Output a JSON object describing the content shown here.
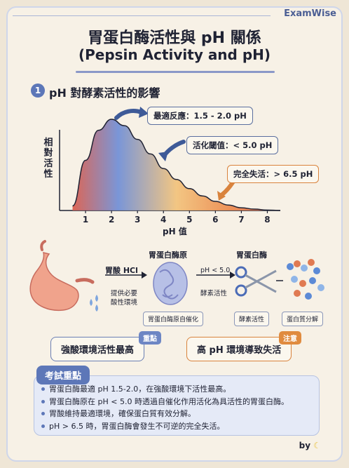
{
  "brand": "ExamWise",
  "title_zh": "胃蛋白酶活性與 pH 關係",
  "title_en": "(Pepsin Activity and pH)",
  "section": {
    "number": "1",
    "title": "pH 對酵素活性的影響"
  },
  "chart_data": {
    "type": "area",
    "ylabel": "相對活性",
    "xlabel": "pH 值",
    "x_ticks": [
      1,
      2,
      3,
      4,
      5,
      6,
      7,
      8
    ],
    "xlim": [
      0,
      8.5
    ],
    "x": [
      0.5,
      1,
      1.5,
      2,
      2.5,
      3,
      3.5,
      4,
      4.5,
      5,
      5.5,
      6,
      6.5,
      7,
      7.5,
      8,
      8.5
    ],
    "y": [
      0.05,
      0.55,
      0.88,
      1.0,
      0.93,
      0.78,
      0.62,
      0.46,
      0.34,
      0.24,
      0.16,
      0.1,
      0.06,
      0.03,
      0.015,
      0.005,
      0.0
    ],
    "annotations": [
      {
        "label": "最適反應：1.5 - 2.0 pH"
      },
      {
        "label": "活化閾值：< 5.0 pH"
      },
      {
        "label": "完全失活：> 6.5 pH"
      }
    ]
  },
  "process": {
    "acid_label": "胃酸 HCl",
    "acid_note": [
      "提供必要",
      "酸性環境"
    ],
    "pepsinogen_label": "胃蛋白酶原",
    "activation_cond": "pH < 5.0",
    "activation_label": "酵素活性",
    "pepsin_label": "胃蛋白酶",
    "chips": [
      "胃蛋白酶原自催化",
      "酵素活性",
      "蛋白質分解"
    ]
  },
  "summary": [
    {
      "text": "強酸環境活性最高",
      "badge": "重點"
    },
    {
      "text": "高 pH 環境導致失活",
      "badge": "注意"
    }
  ],
  "exam": {
    "tab": "考試重點",
    "bullets": [
      "胃蛋白酶最適 pH 1.5-2.0，在強酸環境下活性最高。",
      "胃蛋白酶原在 pH < 5.0 時透過自催化作用活化為具活性的胃蛋白酶。",
      "胃酸維持最適環境，確保蛋白質有效分解。",
      "pH > 6.5 時，胃蛋白酶會發生不可逆的完全失活。"
    ]
  },
  "byline": "by",
  "colors": {
    "accent": "#5d77b8",
    "warm": "#d9833d"
  }
}
